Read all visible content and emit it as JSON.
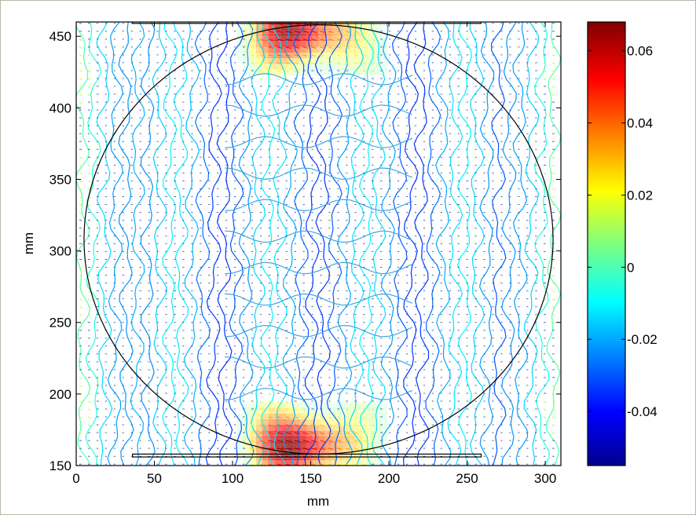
{
  "chart_data": {
    "type": "heatmap",
    "subtype": "contour with quiver vectors",
    "xlabel": "mm",
    "ylabel": "mm",
    "xlim": [
      0,
      310
    ],
    "ylim": [
      150,
      460
    ],
    "x_ticks": [
      "0",
      "50",
      "100",
      "150",
      "200",
      "250",
      "300"
    ],
    "y_ticks": [
      "150",
      "200",
      "250",
      "300",
      "350",
      "400",
      "450"
    ],
    "x_tick_values": [
      0,
      50,
      100,
      150,
      200,
      250,
      300
    ],
    "y_tick_values": [
      150,
      200,
      250,
      300,
      350,
      400,
      450
    ],
    "colorbar": {
      "range": [
        -0.055,
        0.068
      ],
      "tick_labels": [
        "0.06",
        "0.04",
        "0.02",
        "0",
        "-0.02",
        "-0.04"
      ],
      "tick_values": [
        0.06,
        0.04,
        0.02,
        0,
        -0.02,
        -0.04
      ],
      "colormap": "jet"
    },
    "circle": {
      "center": [
        155,
        308
      ],
      "radius": 150
    },
    "strips": [
      {
        "x": [
          36,
          259
        ],
        "y": [
          459,
          461
        ]
      },
      {
        "x": [
          36,
          259
        ],
        "y": [
          156,
          158
        ]
      }
    ],
    "peak_regions": [
      {
        "x": 145,
        "y": 455,
        "value": 0.066
      },
      {
        "x": 145,
        "y": 162,
        "value": 0.068
      }
    ],
    "grid": false
  }
}
